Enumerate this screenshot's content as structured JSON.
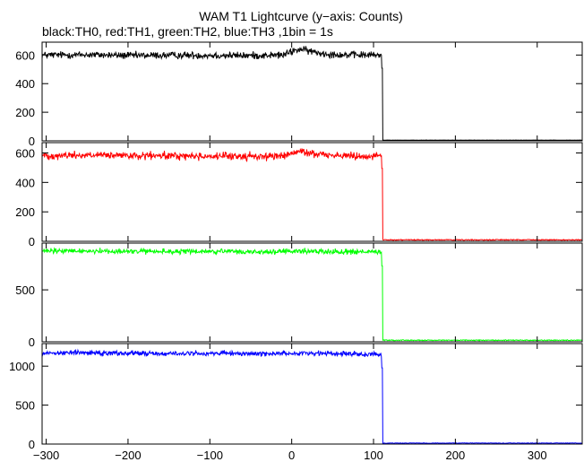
{
  "chart_data": {
    "type": "line",
    "title": "WAM T1 Lightcurve (y−axis: Counts)",
    "subtitle": "black:TH0, red:TH1, green:TH2, blue:TH3 ,1bin = 1s",
    "xlim": [
      -305,
      355
    ],
    "x_ticks": [
      -300,
      -200,
      -100,
      0,
      100,
      200,
      300
    ],
    "x_tick_labels": [
      "−300",
      "−200",
      "−100",
      "0",
      "100",
      "200",
      "300"
    ],
    "drop_x": 111,
    "grid": false,
    "series": [
      {
        "name": "TH0",
        "color": "#000000",
        "ylim": [
          0,
          690
        ],
        "y_ticks": [
          0,
          200,
          400,
          600
        ],
        "level_before": [
          [
            -305,
            600
          ],
          [
            -250,
            602
          ],
          [
            -200,
            596
          ],
          [
            -150,
            598
          ],
          [
            -100,
            598
          ],
          [
            -50,
            596
          ],
          [
            -10,
            600
          ],
          [
            0,
            625
          ],
          [
            10,
            640
          ],
          [
            20,
            630
          ],
          [
            30,
            618
          ],
          [
            40,
            610
          ],
          [
            60,
            602
          ],
          [
            80,
            600
          ],
          [
            100,
            600
          ],
          [
            108,
            598
          ]
        ],
        "noise": 22,
        "level_after": 5,
        "noise_after": 1
      },
      {
        "name": "TH1",
        "color": "#ff0000",
        "ylim": [
          0,
          670
        ],
        "y_ticks": [
          0,
          200,
          400,
          600
        ],
        "level_before": [
          [
            -305,
            582
          ],
          [
            -250,
            585
          ],
          [
            -200,
            580
          ],
          [
            -150,
            580
          ],
          [
            -100,
            578
          ],
          [
            -50,
            576
          ],
          [
            -10,
            580
          ],
          [
            0,
            595
          ],
          [
            10,
            610
          ],
          [
            20,
            600
          ],
          [
            40,
            590
          ],
          [
            60,
            582
          ],
          [
            80,
            580
          ],
          [
            100,
            580
          ],
          [
            108,
            582
          ]
        ],
        "noise": 22,
        "level_after": 10,
        "noise_after": 3
      },
      {
        "name": "TH2",
        "color": "#00ff00",
        "ylim": [
          0,
          950
        ],
        "y_ticks": [
          0,
          500
        ],
        "level_before": [
          [
            -305,
            872
          ],
          [
            -250,
            875
          ],
          [
            -200,
            870
          ],
          [
            -150,
            868
          ],
          [
            -100,
            870
          ],
          [
            -50,
            865
          ],
          [
            0,
            870
          ],
          [
            20,
            872
          ],
          [
            60,
            868
          ],
          [
            100,
            865
          ],
          [
            108,
            860
          ]
        ],
        "noise": 22,
        "level_after": 15,
        "noise_after": 4
      },
      {
        "name": "TH3",
        "color": "#0000ff",
        "ylim": [
          0,
          1290
        ],
        "y_ticks": [
          0,
          500,
          1000
        ],
        "level_before": [
          [
            -305,
            1170
          ],
          [
            -250,
            1175
          ],
          [
            -200,
            1168
          ],
          [
            -150,
            1160
          ],
          [
            -100,
            1165
          ],
          [
            -50,
            1160
          ],
          [
            0,
            1165
          ],
          [
            20,
            1170
          ],
          [
            60,
            1160
          ],
          [
            100,
            1155
          ],
          [
            108,
            1150
          ]
        ],
        "noise": 28,
        "level_after": 12,
        "noise_after": 3
      }
    ]
  }
}
